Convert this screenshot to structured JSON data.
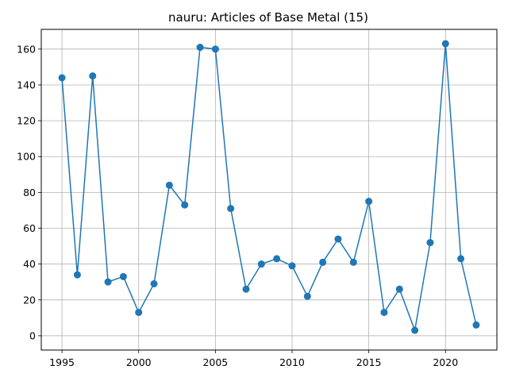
{
  "chart_data": {
    "type": "line",
    "title": "nauru: Articles of Base Metal (15)",
    "xlabel": "",
    "ylabel": "",
    "xlim": [
      1993.65,
      2023.35
    ],
    "ylim": [
      -8.0,
      171.0
    ],
    "xticks": [
      1995,
      2000,
      2005,
      2010,
      2015,
      2020
    ],
    "yticks": [
      0,
      20,
      40,
      60,
      80,
      100,
      120,
      140,
      160
    ],
    "grid": true,
    "series_color": "#1f77b4",
    "x": [
      1995,
      1996,
      1997,
      1998,
      1999,
      2000,
      2001,
      2002,
      2003,
      2004,
      2005,
      2006,
      2007,
      2008,
      2009,
      2010,
      2011,
      2012,
      2013,
      2014,
      2015,
      2016,
      2017,
      2018,
      2019,
      2020,
      2021,
      2022
    ],
    "y": [
      144,
      34,
      145,
      30,
      33,
      13,
      29,
      84,
      73,
      161,
      160,
      71,
      26,
      40,
      43,
      39,
      22,
      41,
      54,
      41,
      75,
      13,
      26,
      3,
      52,
      163,
      43,
      6
    ]
  }
}
